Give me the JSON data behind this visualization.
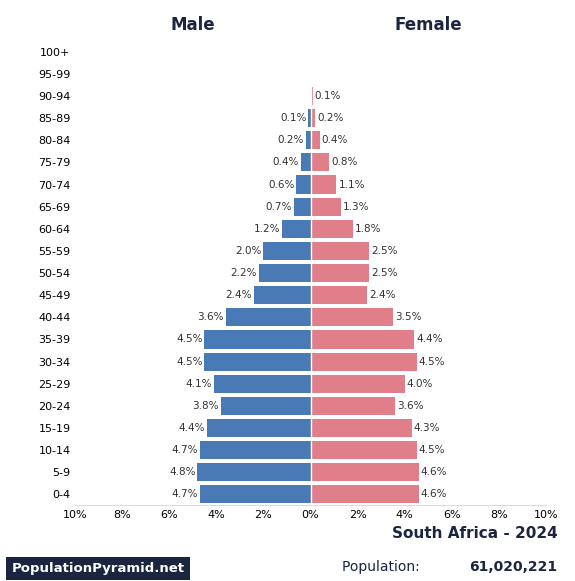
{
  "age_groups": [
    "0-4",
    "5-9",
    "10-14",
    "15-19",
    "20-24",
    "25-29",
    "30-34",
    "35-39",
    "40-44",
    "45-49",
    "50-54",
    "55-59",
    "60-64",
    "65-69",
    "70-74",
    "75-79",
    "80-84",
    "85-89",
    "90-94",
    "95-99",
    "100+"
  ],
  "male_pct": [
    4.7,
    4.8,
    4.7,
    4.4,
    3.8,
    4.1,
    4.5,
    4.5,
    3.6,
    2.4,
    2.2,
    2.0,
    1.2,
    0.7,
    0.6,
    0.4,
    0.2,
    0.1,
    0.0,
    0.0,
    0.0
  ],
  "female_pct": [
    4.6,
    4.6,
    4.5,
    4.3,
    3.6,
    4.0,
    4.5,
    4.4,
    3.5,
    2.4,
    2.5,
    2.5,
    1.8,
    1.3,
    1.1,
    0.8,
    0.4,
    0.2,
    0.1,
    0.0,
    0.0
  ],
  "male_color": "#4a7ab5",
  "female_color": "#e07f8a",
  "background_color": "#ffffff",
  "title_line1": "South Africa - 2024",
  "title_line2_prefix": "Population: ",
  "title_line2_bold": "61,020,221",
  "watermark": "PopulationPyramid.net",
  "watermark_bg": "#1a2640",
  "text_color": "#1a2640",
  "xlim": 10,
  "bar_height": 0.82,
  "label_fontsize": 7.5,
  "tick_fontsize": 8.0,
  "header_fontsize": 12
}
